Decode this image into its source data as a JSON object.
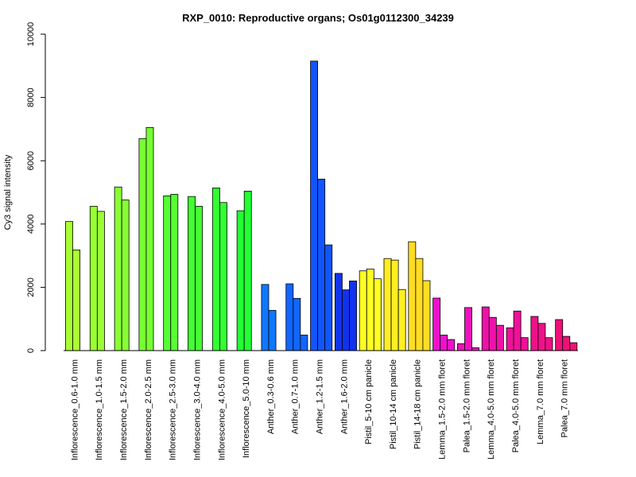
{
  "chart_data": {
    "type": "bar",
    "title": "RXP_0010: Reproductive organs; Os01g0112300_34239",
    "ylabel": "Cy3 signal intensity",
    "ylim": [
      0,
      10000
    ],
    "yticks": [
      0,
      2000,
      4000,
      6000,
      8000,
      10000
    ],
    "grid": false,
    "groups": [
      {
        "label": "Inflorescence_0.6-1.0 mm",
        "values": [
          4080,
          3180
        ],
        "colors": [
          "#aaff33",
          "#aaff33"
        ]
      },
      {
        "label": "Inflorescence_1.0-1.5 mm",
        "values": [
          4560,
          4400
        ],
        "colors": [
          "#99ff33",
          "#99ff33"
        ]
      },
      {
        "label": "Inflorescence_1.5-2.0 mm",
        "values": [
          5170,
          4760
        ],
        "colors": [
          "#88ff33",
          "#88ff33"
        ]
      },
      {
        "label": "Inflorescence_2.0-2.5 mm",
        "values": [
          6700,
          7050
        ],
        "colors": [
          "#77ff33",
          "#77ff33"
        ]
      },
      {
        "label": "Inflorescence_2.5-3.0 mm",
        "values": [
          4890,
          4940
        ],
        "colors": [
          "#55ff33",
          "#55ff33"
        ]
      },
      {
        "label": "Inflorescence_3.0-4.0 mm",
        "values": [
          4870,
          4560
        ],
        "colors": [
          "#44ff33",
          "#44ff33"
        ]
      },
      {
        "label": "Inflorescence_4.0-5.0 mm",
        "values": [
          5140,
          4680
        ],
        "colors": [
          "#33ff33",
          "#33ff33"
        ]
      },
      {
        "label": "Inflorescence_5.0-10 mm",
        "values": [
          4420,
          5040
        ],
        "colors": [
          "#22ff33",
          "#22ff33"
        ]
      },
      {
        "label": "Anther_0.3-0.6 mm",
        "values": [
          2090,
          1270
        ],
        "colors": [
          "#1177ff",
          "#1177ff"
        ]
      },
      {
        "label": "Anther_0.7-1.0 mm",
        "values": [
          2110,
          1650,
          490
        ],
        "colors": [
          "#1166ff",
          "#1166ff",
          "#1166ff"
        ]
      },
      {
        "label": "Anther_1.2-1.5 mm",
        "values": [
          9150,
          5420,
          3340
        ],
        "colors": [
          "#1155ff",
          "#1155ff",
          "#1155ff"
        ]
      },
      {
        "label": "Anther_1.6-2.0 mm",
        "values": [
          2440,
          1920,
          2200
        ],
        "colors": [
          "#1133ee",
          "#1133ee",
          "#1133ee"
        ]
      },
      {
        "label": "Pistil_5-10 cm panicle",
        "values": [
          2520,
          2580,
          2270
        ],
        "colors": [
          "#ffff22",
          "#ffff22",
          "#ffff22"
        ]
      },
      {
        "label": "Pistil_10-14 cm panicle",
        "values": [
          2910,
          2860,
          1930
        ],
        "colors": [
          "#ffee22",
          "#ffee22",
          "#ffee22"
        ]
      },
      {
        "label": "Pistil_14-18 cm panicle",
        "values": [
          3440,
          2910,
          2210
        ],
        "colors": [
          "#ffdd22",
          "#ffdd22",
          "#ffdd22"
        ]
      },
      {
        "label": "Lemma_1.5-2.0 mm floret",
        "values": [
          1660,
          490,
          350
        ],
        "colors": [
          "#ee11cc",
          "#ee11cc",
          "#ee11cc"
        ]
      },
      {
        "label": "Palea_1.5-2.0 mm floret",
        "values": [
          220,
          1360,
          90
        ],
        "colors": [
          "#ee11bb",
          "#ee11bb",
          "#ee11bb"
        ]
      },
      {
        "label": "Lemma_4.0-5.0 mm floret",
        "values": [
          1380,
          1050,
          800
        ],
        "colors": [
          "#ee11aa",
          "#ee11aa",
          "#ee11aa"
        ]
      },
      {
        "label": "Palea_4.0-5.0 mm floret",
        "values": [
          720,
          1250,
          410
        ],
        "colors": [
          "#ee1199",
          "#ee1199",
          "#ee1199"
        ]
      },
      {
        "label": "Lemma_7.0 mm floret",
        "values": [
          1080,
          860,
          410
        ],
        "colors": [
          "#ee1188",
          "#ee1188",
          "#ee1188"
        ]
      },
      {
        "label": "Palea_7.0 mm floret",
        "values": [
          980,
          450,
          250
        ],
        "colors": [
          "#ee1177",
          "#ee1177",
          "#ee1177"
        ]
      }
    ]
  }
}
